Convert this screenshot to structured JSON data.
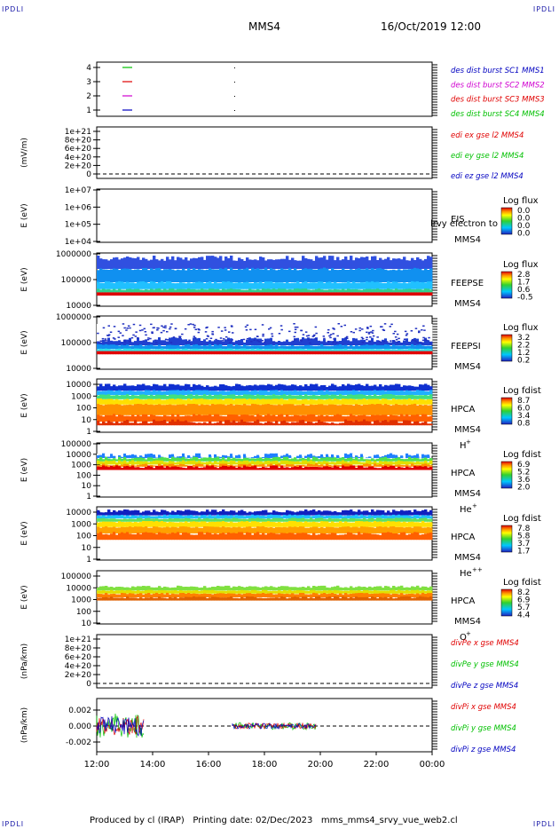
{
  "corner_labels": {
    "tl": "IPDLI",
    "tr": "IPDLI",
    "bl": "IPDLI",
    "br": "IPDLI"
  },
  "header": {
    "title": "MMS4",
    "date": "16/Oct/2019 12:00"
  },
  "footer": {
    "produced": "Produced by cl (IRAP)",
    "printing": "Printing date: 02/Dec/2023",
    "file": "mms_mms4_srvy_vue_web2.cl"
  },
  "colors": {
    "axis": "#000000",
    "red": "#e00000",
    "green": "#00c000",
    "blue": "#0000c0",
    "magenta": "#d000d0"
  },
  "chart_data": {
    "type": "heatmap",
    "x_axis": {
      "ticks": [
        "12:00",
        "14:00",
        "16:00",
        "18:00",
        "20:00",
        "22:00",
        "00:00"
      ]
    },
    "panels": [
      {
        "id": "sc",
        "type": "line",
        "ylabel": "",
        "yticks": [
          "4",
          "3",
          "2",
          "1"
        ],
        "legend": [
          {
            "text": "des dist burst SC1 MMS1",
            "color": "#0000c0"
          },
          {
            "text": "des dist burst SC2 MMS2",
            "color": "#d000d0"
          },
          {
            "text": "des dist burst SC3 MMS3",
            "color": "#e00000"
          },
          {
            "text": "des dist burst SC4 MMS4",
            "color": "#00c000"
          }
        ]
      },
      {
        "id": "edi",
        "type": "line",
        "ylabel": "(mV/m)",
        "yticks": [
          "1e+21",
          "8e+20",
          "6e+20",
          "4e+20",
          "2e+20",
          "0"
        ],
        "legend": [
          {
            "text": "edi ex gse l2 MMS4",
            "color": "#e00000"
          },
          {
            "text": "edi ey gse l2 MMS4",
            "color": "#00c000"
          },
          {
            "text": "edi ez gse l2 MMS4",
            "color": "#0000c0"
          }
        ]
      },
      {
        "id": "eis",
        "type": "heatmap",
        "ylabel": "E (eV)",
        "yticks": [
          "1e+07",
          "1e+06",
          "1e+05",
          "1e+04"
        ],
        "right": [
          "EIS",
          "MMS4"
        ],
        "overlay": "lrvy electron to",
        "colorbar": {
          "title": "Log flux",
          "labels": [
            "0.0",
            "0.0",
            "0.0",
            "0.0"
          ]
        }
      },
      {
        "id": "feepse",
        "type": "heatmap",
        "ylabel": "E (eV)",
        "yticks": [
          "1000000",
          "100000",
          "10000"
        ],
        "right": [
          "FEEPSE",
          "MMS4"
        ],
        "colorbar": {
          "title": "Log flux",
          "labels": [
            "2.8",
            "1.7",
            "0.6",
            "-0.5"
          ]
        }
      },
      {
        "id": "feepsi",
        "type": "heatmap",
        "ylabel": "E (eV)",
        "yticks": [
          "1000000",
          "100000",
          "10000"
        ],
        "right": [
          "FEEPSI",
          "MMS4"
        ],
        "colorbar": {
          "title": "Log flux",
          "labels": [
            "3.2",
            "2.2",
            "1.2",
            "0.2"
          ]
        }
      },
      {
        "id": "hpca_h",
        "type": "heatmap",
        "ylabel": "E (eV)",
        "yticks": [
          "10000",
          "1000",
          "100",
          "10",
          "1"
        ],
        "right": [
          "HPCA",
          "MMS4"
        ],
        "species": "H",
        "species_sup": "+",
        "colorbar": {
          "title": "Log fdist",
          "labels": [
            "8.7",
            "6.0",
            "3.4",
            "0.8"
          ]
        }
      },
      {
        "id": "hpca_he",
        "type": "heatmap",
        "ylabel": "E (eV)",
        "yticks": [
          "100000",
          "10000",
          "1000",
          "100",
          "10",
          "1"
        ],
        "right": [
          "HPCA",
          "MMS4"
        ],
        "species": "He",
        "species_sup": "+",
        "colorbar": {
          "title": "Log fdist",
          "labels": [
            "6.9",
            "5.2",
            "3.6",
            "2.0"
          ]
        }
      },
      {
        "id": "hpca_hepp",
        "type": "heatmap",
        "ylabel": "E (eV)",
        "yticks": [
          "10000",
          "1000",
          "100",
          "10",
          "1"
        ],
        "right": [
          "HPCA",
          "MMS4"
        ],
        "species": "He",
        "species_sup": "++",
        "colorbar": {
          "title": "Log fdist",
          "labels": [
            "7.8",
            "5.8",
            "3.7",
            "1.7"
          ]
        }
      },
      {
        "id": "hpca_o",
        "type": "heatmap",
        "ylabel": "E (eV)",
        "yticks": [
          "100000",
          "10000",
          "1000",
          "100",
          "10"
        ],
        "right": [
          "HPCA",
          "MMS4"
        ],
        "species": "O",
        "species_sup": "+",
        "colorbar": {
          "title": "Log fdist",
          "labels": [
            "8.2",
            "6.9",
            "5.7",
            "4.4"
          ]
        }
      },
      {
        "id": "divpe",
        "type": "line",
        "ylabel": "(nPa/km)",
        "yticks": [
          "1e+21",
          "8e+20",
          "6e+20",
          "4e+20",
          "2e+20",
          "0"
        ],
        "legend": [
          {
            "text": "divPe x gse MMS4",
            "color": "#e00000"
          },
          {
            "text": "divPe y gse MMS4",
            "color": "#00c000"
          },
          {
            "text": "divPe z gse MMS4",
            "color": "#0000c0"
          }
        ]
      },
      {
        "id": "divpi",
        "type": "line",
        "ylabel": "(nPa/km)",
        "yticks": [
          "0.002",
          "0.000",
          "-0.002"
        ],
        "legend": [
          {
            "text": "divPi x gse MMS4",
            "color": "#e00000"
          },
          {
            "text": "divPi y gse MMS4",
            "color": "#00c000"
          },
          {
            "text": "divPi z gse MMS4",
            "color": "#0000c0"
          }
        ]
      }
    ]
  }
}
